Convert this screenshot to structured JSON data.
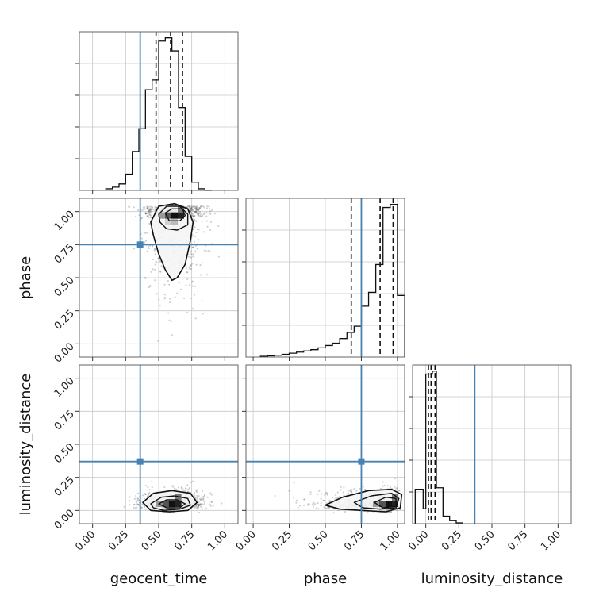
{
  "chart_data": {
    "type": "corner",
    "parameters": [
      "geocent_time",
      "phase",
      "luminosity_distance"
    ],
    "axis_labels": {
      "x": [
        "geocent_time",
        "phase",
        "luminosity_distance"
      ],
      "y": [
        "phase",
        "luminosity_distance"
      ]
    },
    "ticks": [
      0.0,
      0.25,
      0.5,
      0.75,
      1.0
    ],
    "tick_labels": [
      "0.00",
      "0.25",
      "0.50",
      "0.75",
      "1.00"
    ],
    "truths": {
      "geocent_time": 0.36,
      "phase": 0.75,
      "luminosity_distance": 0.37
    },
    "truth_color": "#4682b4",
    "grid": true,
    "histograms": [
      {
        "parameter": "geocent_time",
        "xlim": [
          -0.1,
          1.1
        ],
        "quantiles": [
          0.48,
          0.59,
          0.68
        ],
        "bin_edges": [
          0.1,
          0.15,
          0.2,
          0.25,
          0.3,
          0.35,
          0.4,
          0.45,
          0.5,
          0.55,
          0.6,
          0.65,
          0.7,
          0.75,
          0.8,
          0.85,
          0.9
        ],
        "counts": [
          0.01,
          0.02,
          0.04,
          0.1,
          0.24,
          0.38,
          0.62,
          0.68,
          0.92,
          0.94,
          0.86,
          0.51,
          0.21,
          0.05,
          0.01,
          0.0
        ]
      },
      {
        "parameter": "phase",
        "xlim": [
          -0.05,
          1.05
        ],
        "quantiles": [
          0.68,
          0.88,
          0.97
        ],
        "bin_edges": [
          0.05,
          0.1,
          0.15,
          0.2,
          0.25,
          0.3,
          0.35,
          0.4,
          0.45,
          0.5,
          0.55,
          0.6,
          0.65,
          0.7,
          0.75,
          0.8,
          0.85,
          0.9,
          0.95,
          1.0,
          1.05
        ],
        "counts": [
          0.005,
          0.008,
          0.012,
          0.018,
          0.025,
          0.032,
          0.04,
          0.048,
          0.06,
          0.075,
          0.09,
          0.12,
          0.16,
          0.2,
          0.33,
          0.42,
          0.6,
          0.97,
          0.99,
          0.4
        ]
      },
      {
        "parameter": "luminosity_distance",
        "xlim": [
          -0.1,
          1.1
        ],
        "quantiles": [
          0.02,
          0.04,
          0.07
        ],
        "bin_edges": [
          -0.08,
          -0.02,
          0.0,
          0.05,
          0.08,
          0.13,
          0.18,
          0.23,
          0.28
        ],
        "counts": [
          0.23,
          0.1,
          1.0,
          1.02,
          0.24,
          0.05,
          0.02,
          0.005
        ]
      }
    ],
    "panels_2d": [
      {
        "x": "geocent_time",
        "y": "phase",
        "xlim": [
          -0.1,
          1.1
        ],
        "ylim": [
          -0.1,
          1.1
        ],
        "peak": [
          0.62,
          0.97
        ],
        "contours": [
          [
            [
              0.44,
              0.92
            ],
            [
              0.5,
              1.04
            ],
            [
              0.62,
              1.06
            ],
            [
              0.72,
              1.02
            ],
            [
              0.76,
              0.92
            ],
            [
              0.74,
              0.78
            ],
            [
              0.7,
              0.6
            ],
            [
              0.64,
              0.5
            ],
            [
              0.6,
              0.48
            ],
            [
              0.55,
              0.56
            ],
            [
              0.5,
              0.68
            ],
            [
              0.46,
              0.82
            ]
          ],
          [
            [
              0.5,
              0.98
            ],
            [
              0.56,
              1.04
            ],
            [
              0.66,
              1.04
            ],
            [
              0.72,
              0.98
            ],
            [
              0.72,
              0.9
            ],
            [
              0.64,
              0.86
            ],
            [
              0.56,
              0.87
            ],
            [
              0.51,
              0.92
            ]
          ],
          [
            [
              0.55,
              0.99
            ],
            [
              0.6,
              1.02
            ],
            [
              0.68,
              1.02
            ],
            [
              0.7,
              0.97
            ],
            [
              0.66,
              0.93
            ],
            [
              0.58,
              0.93
            ]
          ]
        ],
        "scatter_spread": [
          0.12,
          0.28
        ]
      },
      {
        "x": "geocent_time",
        "y": "luminosity_distance",
        "xlim": [
          -0.1,
          1.1
        ],
        "ylim": [
          -0.1,
          1.1
        ],
        "peak": [
          0.6,
          0.05
        ],
        "contours": [
          [
            [
              0.38,
              0.06
            ],
            [
              0.46,
              0.13
            ],
            [
              0.6,
              0.15
            ],
            [
              0.74,
              0.13
            ],
            [
              0.79,
              0.06
            ],
            [
              0.72,
              0.0
            ],
            [
              0.58,
              -0.01
            ],
            [
              0.44,
              0.0
            ]
          ],
          [
            [
              0.44,
              0.05
            ],
            [
              0.52,
              0.1
            ],
            [
              0.62,
              0.11
            ],
            [
              0.72,
              0.09
            ],
            [
              0.74,
              0.04
            ],
            [
              0.66,
              0.01
            ],
            [
              0.54,
              0.0
            ],
            [
              0.46,
              0.02
            ]
          ],
          [
            [
              0.5,
              0.05
            ],
            [
              0.56,
              0.08
            ],
            [
              0.64,
              0.08
            ],
            [
              0.7,
              0.05
            ],
            [
              0.66,
              0.02
            ],
            [
              0.56,
              0.02
            ]
          ]
        ],
        "scatter_spread": [
          0.12,
          0.05
        ]
      },
      {
        "x": "phase",
        "y": "luminosity_distance",
        "xlim": [
          -0.05,
          1.05
        ],
        "ylim": [
          -0.1,
          1.1
        ],
        "peak": [
          0.94,
          0.05
        ],
        "contours": [
          [
            [
              0.5,
              0.04
            ],
            [
              0.62,
              0.1
            ],
            [
              0.8,
              0.15
            ],
            [
              0.96,
              0.16
            ],
            [
              1.03,
              0.12
            ],
            [
              1.02,
              0.02
            ],
            [
              0.92,
              -0.01
            ],
            [
              0.75,
              0.0
            ],
            [
              0.6,
              0.01
            ]
          ],
          [
            [
              0.7,
              0.06
            ],
            [
              0.82,
              0.11
            ],
            [
              0.96,
              0.13
            ],
            [
              1.01,
              0.09
            ],
            [
              0.99,
              0.02
            ],
            [
              0.88,
              0.01
            ],
            [
              0.76,
              0.02
            ]
          ],
          [
            [
              0.84,
              0.06
            ],
            [
              0.92,
              0.1
            ],
            [
              0.99,
              0.09
            ],
            [
              0.99,
              0.03
            ],
            [
              0.9,
              0.02
            ]
          ]
        ],
        "scatter_spread": [
          0.22,
          0.05
        ]
      }
    ]
  }
}
